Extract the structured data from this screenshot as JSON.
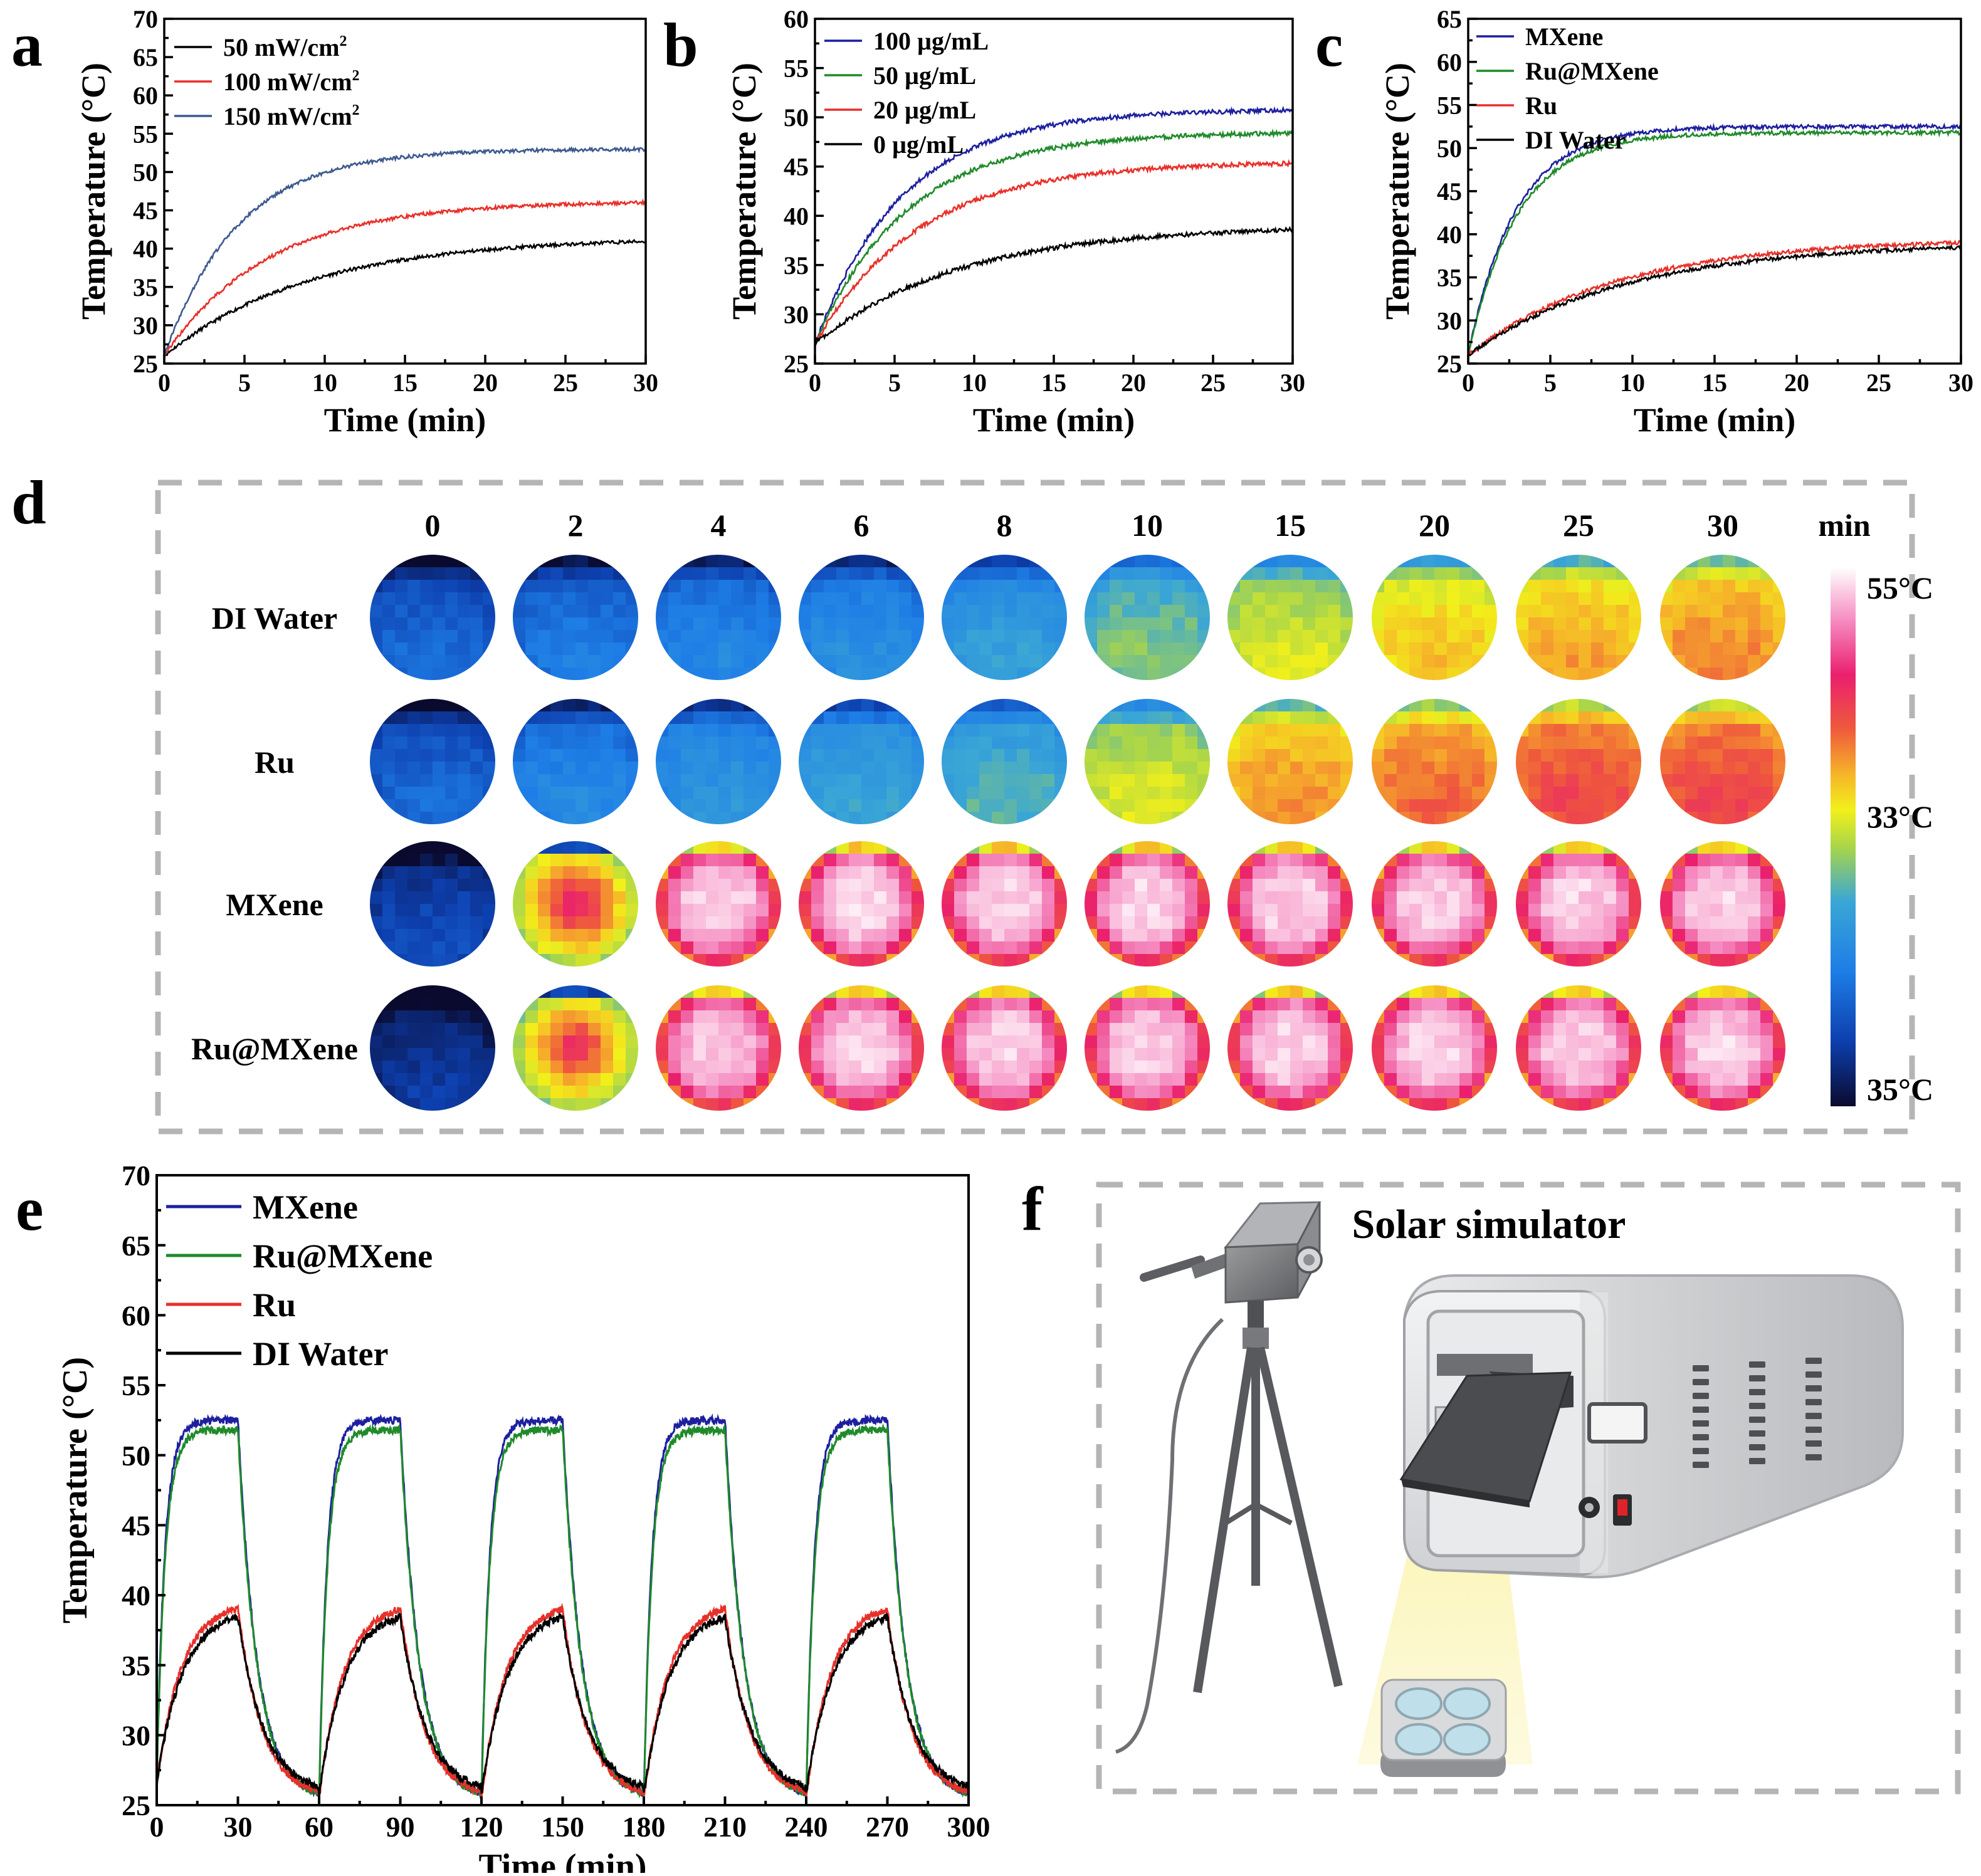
{
  "chart_data": [
    {
      "panel": "a",
      "type": "line",
      "xlabel": "Time (min)",
      "ylabel": "Temperature (°C)",
      "xlim": [
        0,
        30
      ],
      "ylim": [
        25,
        70
      ],
      "xticks": [
        0,
        5,
        10,
        15,
        20,
        25,
        30
      ],
      "yticks": [
        25,
        30,
        35,
        40,
        45,
        50,
        55,
        60,
        65,
        70
      ],
      "legend_position": "top-left",
      "series": [
        {
          "name": "50 mW/cm",
          "sup": "2",
          "color": "#000000",
          "T0": 26,
          "Tmax": 41.5,
          "tau": 9.0
        },
        {
          "name": "100 mW/cm",
          "sup": "2",
          "color": "#e8302a",
          "T0": 26,
          "Tmax": 46.2,
          "tau": 6.5
        },
        {
          "name": "150 mW/cm",
          "sup": "2",
          "color": "#3e5a8f",
          "T0": 26,
          "Tmax": 53.0,
          "tau": 4.6
        }
      ]
    },
    {
      "panel": "b",
      "type": "line",
      "xlabel": "Time (min)",
      "ylabel": "Temperature (°C)",
      "xlim": [
        0,
        30
      ],
      "ylim": [
        25,
        60
      ],
      "xticks": [
        0,
        5,
        10,
        15,
        20,
        25,
        30
      ],
      "yticks": [
        25,
        30,
        35,
        40,
        45,
        50,
        55,
        60
      ],
      "legend_position": "top-left",
      "series": [
        {
          "name": "100 µg/mL",
          "color": "#1d1f9f",
          "T0": 27,
          "Tmax": 50.8,
          "tau": 5.5
        },
        {
          "name": "50 µg/mL",
          "color": "#1f8a2a",
          "T0": 27,
          "Tmax": 48.5,
          "tau": 5.8
        },
        {
          "name": "20 µg/mL",
          "color": "#e8302a",
          "T0": 27,
          "Tmax": 45.5,
          "tau": 6.5
        },
        {
          "name": "0 µg/mL",
          "color": "#000000",
          "T0": 27,
          "Tmax": 39.0,
          "tau": 9.0
        }
      ]
    },
    {
      "panel": "c",
      "type": "line",
      "xlabel": "Time (min)",
      "ylabel": "Temperature (°C)",
      "xlim": [
        0,
        30
      ],
      "ylim": [
        25,
        65
      ],
      "xticks": [
        0,
        5,
        10,
        15,
        20,
        25,
        30
      ],
      "yticks": [
        25,
        30,
        35,
        40,
        45,
        50,
        55,
        60,
        65
      ],
      "legend_position": "top-left",
      "series": [
        {
          "name": "MXene",
          "color": "#1d1f9f",
          "T0": 26,
          "Tmax": 52.5,
          "tau": 2.9
        },
        {
          "name": "Ru@MXene",
          "color": "#1f8a2a",
          "T0": 26,
          "Tmax": 51.8,
          "tau": 3.0
        },
        {
          "name": "Ru",
          "color": "#e8302a",
          "T0": 26,
          "Tmax": 39.5,
          "tau": 9.0
        },
        {
          "name": "DI Water",
          "color": "#000000",
          "T0": 26,
          "Tmax": 39.0,
          "tau": 9.5
        }
      ]
    },
    {
      "panel": "e",
      "type": "line",
      "xlabel": "Time (min)",
      "ylabel": "Temperature (°C)",
      "xlim": [
        0,
        300
      ],
      "ylim": [
        25,
        70
      ],
      "xticks": [
        0,
        30,
        60,
        90,
        120,
        150,
        180,
        210,
        240,
        270,
        300
      ],
      "yticks": [
        25,
        30,
        35,
        40,
        45,
        50,
        55,
        60,
        65,
        70
      ],
      "legend_position": "top-left",
      "cycle_min": 60,
      "on_min": 30,
      "series": [
        {
          "name": "MXene",
          "color": "#1d1f9f",
          "Tmax": 52.5,
          "Tmin": 25.5,
          "tau_on": 3.0,
          "tau_off": 7.0
        },
        {
          "name": "Ru@MXene",
          "color": "#1f8a2a",
          "Tmax": 51.8,
          "Tmin": 25.5,
          "tau_on": 3.1,
          "tau_off": 7.0
        },
        {
          "name": "Ru",
          "color": "#e8302a",
          "Tmax": 39.5,
          "Tmin": 25.5,
          "tau_on": 9.0,
          "tau_off": 9.0
        },
        {
          "name": "DI Water",
          "color": "#000000",
          "Tmax": 39.0,
          "Tmin": 25.8,
          "tau_on": 9.5,
          "tau_off": 9.5
        }
      ]
    }
  ],
  "panel_labels": {
    "a": "a",
    "b": "b",
    "c": "c",
    "d": "d",
    "e": "e",
    "f": "f"
  },
  "panel_d": {
    "time_labels": [
      "0",
      "2",
      "4",
      "6",
      "8",
      "10",
      "15",
      "20",
      "25",
      "30"
    ],
    "time_unit": "min",
    "rows": [
      {
        "label": "DI Water",
        "temps": [
          0.18,
          0.22,
          0.25,
          0.28,
          0.33,
          0.42,
          0.5,
          0.57,
          0.6,
          0.63
        ]
      },
      {
        "label": "Ru",
        "temps": [
          0.18,
          0.26,
          0.3,
          0.34,
          0.38,
          0.5,
          0.62,
          0.66,
          0.7,
          0.7
        ]
      },
      {
        "label": "MXene",
        "temps": [
          0.12,
          0.88,
          0.96,
          0.96,
          0.96,
          0.96,
          0.96,
          0.96,
          0.96,
          0.96
        ]
      },
      {
        "label": "Ru@MXene",
        "temps": [
          0.08,
          0.86,
          0.95,
          0.96,
          0.96,
          0.96,
          0.96,
          0.96,
          0.96,
          0.96
        ]
      }
    ],
    "colorbar": {
      "max_label": "55°C",
      "mid_label": "33°C",
      "min_label": "35°C"
    }
  },
  "panel_f": {
    "title": "Solar simulator"
  },
  "colors": {
    "border": "#b5b5b5",
    "lightbeam": "#fbf6c2",
    "device_body": "#d4d6d8",
    "device_dark": "#4a4c50"
  }
}
